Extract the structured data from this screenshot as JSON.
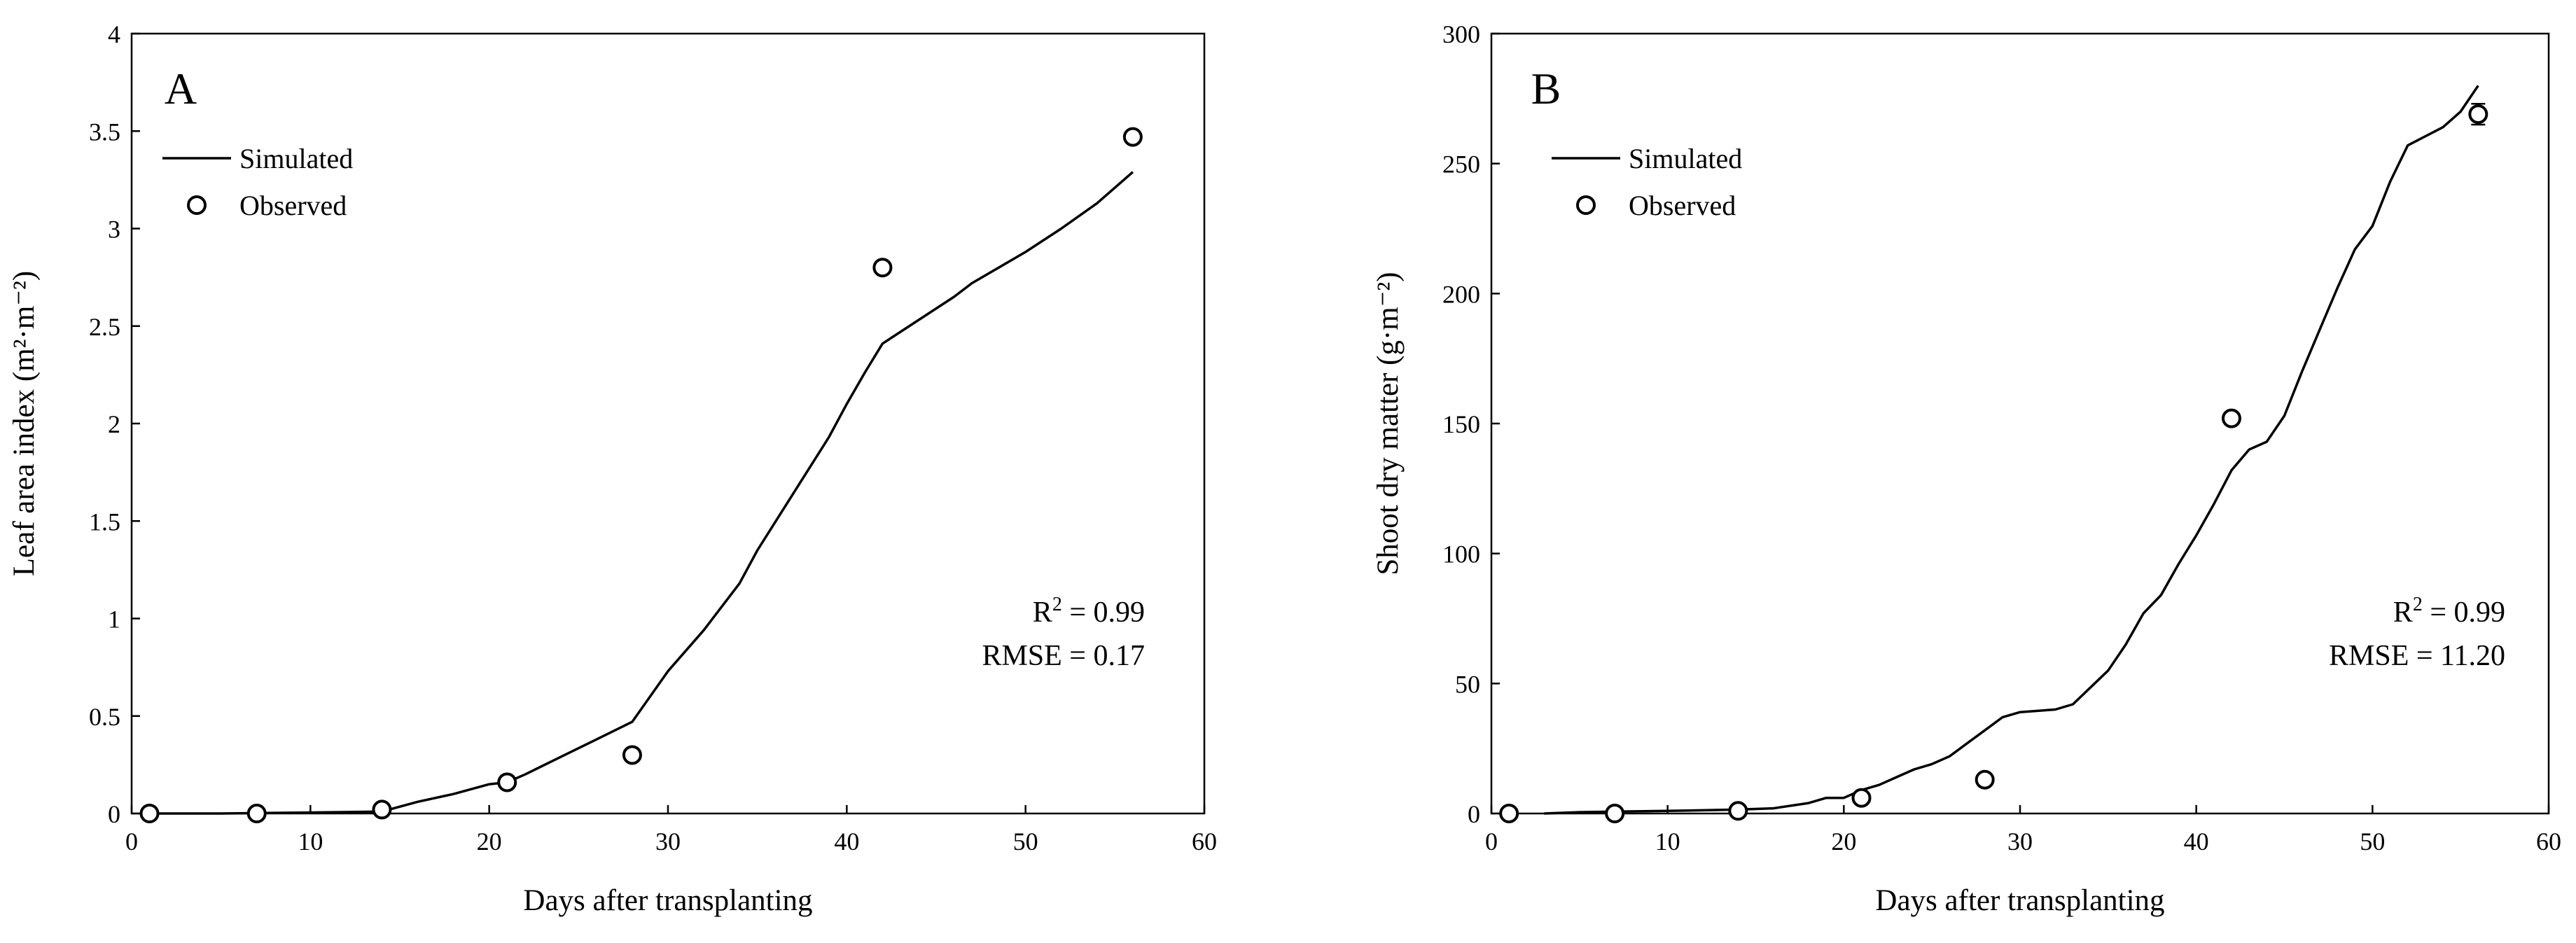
{
  "chart_data": [
    {
      "type": "line",
      "panel_label": "A",
      "xlabel": "Days after transplanting",
      "ylabel": "Leaf area index (m²·m⁻²)",
      "xlim": [
        0,
        60
      ],
      "ylim": [
        0,
        4
      ],
      "x_ticks": [
        0,
        10,
        20,
        30,
        40,
        50,
        60
      ],
      "y_ticks": [
        0,
        0.5,
        1,
        1.5,
        2,
        2.5,
        3,
        3.5,
        4
      ],
      "y_tick_labels": [
        "0",
        "0.5",
        "1",
        "1.5",
        "2",
        "2.5",
        "3",
        "3.5",
        "4"
      ],
      "grid": false,
      "legend": {
        "position": "top-left",
        "simulated_label": "Simulated",
        "observed_label": "Observed"
      },
      "stats": {
        "r2_prefix": "R",
        "r2_sup": "2",
        "r2_value": " = 0.99",
        "rmse": "RMSE = 0.17"
      },
      "simulated": {
        "x": [
          1,
          5,
          10,
          14,
          16,
          18,
          20,
          21,
          22,
          24,
          26,
          28,
          29,
          30,
          32,
          34,
          35,
          37,
          39,
          40,
          41,
          42,
          44,
          46,
          47,
          50,
          52,
          54,
          56
        ],
        "y": [
          0.0,
          0.0,
          0.005,
          0.01,
          0.06,
          0.1,
          0.15,
          0.16,
          0.2,
          0.29,
          0.38,
          0.47,
          0.6,
          0.73,
          0.94,
          1.18,
          1.35,
          1.64,
          1.93,
          2.1,
          2.26,
          2.41,
          2.53,
          2.65,
          2.72,
          2.88,
          3.0,
          3.13,
          3.29
        ]
      },
      "observed": {
        "x": [
          1,
          7,
          14,
          21,
          28,
          42,
          56
        ],
        "y": [
          0.0,
          0.0,
          0.02,
          0.16,
          0.3,
          2.8,
          3.47
        ]
      }
    },
    {
      "type": "line",
      "panel_label": "B",
      "xlabel": "Days after transplanting",
      "ylabel": "Shoot dry matter (g·m⁻²)",
      "xlim": [
        0,
        60
      ],
      "ylim": [
        0,
        300
      ],
      "x_ticks": [
        0,
        10,
        20,
        30,
        40,
        50,
        60
      ],
      "y_ticks": [
        0,
        50,
        100,
        150,
        200,
        250,
        300
      ],
      "y_tick_labels": [
        "0",
        "50",
        "100",
        "150",
        "200",
        "250",
        "300"
      ],
      "grid": false,
      "legend": {
        "position": "top-left",
        "simulated_label": "Simulated",
        "observed_label": "Observed"
      },
      "stats": {
        "r2_prefix": "R",
        "r2_sup": "2",
        "r2_value": " = 0.99",
        "rmse": "RMSE = 11.20"
      },
      "simulated": {
        "x": [
          3,
          5,
          10,
          14,
          16,
          18,
          19,
          20,
          21,
          22,
          23,
          24,
          25,
          26,
          27,
          28,
          29,
          30,
          32,
          33,
          35,
          36,
          37,
          38,
          39,
          40,
          41,
          42,
          43,
          44,
          45,
          46,
          47,
          48,
          49,
          50,
          51,
          52,
          54,
          55,
          56
        ],
        "y": [
          0,
          0.5,
          1,
          1.5,
          2,
          4,
          6,
          6,
          9,
          11,
          14,
          17,
          19,
          22,
          27,
          32,
          37,
          39,
          40,
          42,
          55,
          65,
          77,
          84,
          96,
          107,
          119,
          132,
          140,
          143,
          153,
          170,
          186,
          202,
          217,
          226,
          243,
          257,
          264,
          270,
          280
        ]
      },
      "observed": {
        "x": [
          1,
          7,
          14,
          21,
          28,
          42,
          56
        ],
        "y": [
          0,
          0,
          1,
          6,
          13,
          152,
          269
        ],
        "error": [
          0,
          0,
          0,
          0,
          0,
          0,
          4
        ]
      }
    }
  ]
}
